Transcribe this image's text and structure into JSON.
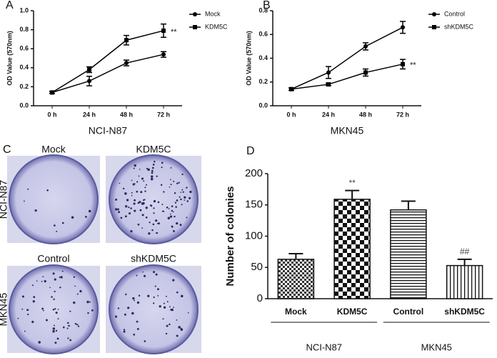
{
  "chart_data": [
    {
      "type": "line",
      "panel_label": "A",
      "x_label": "NCI-N87",
      "y_label": "OD Value (570nm)",
      "categories": [
        "0 h",
        "24 h",
        "48 h",
        "72 h"
      ],
      "series": [
        {
          "name": "Mock",
          "marker": "circle",
          "color": "#000000",
          "values": [
            0.14,
            0.26,
            0.45,
            0.54
          ],
          "errors": [
            0.01,
            0.05,
            0.03,
            0.03
          ]
        },
        {
          "name": "KDM5C",
          "marker": "square",
          "color": "#000000",
          "values": [
            0.14,
            0.38,
            0.69,
            0.79
          ],
          "errors": [
            0.01,
            0.03,
            0.05,
            0.07
          ]
        }
      ],
      "annotations": [
        "**"
      ],
      "ylim": [
        0,
        1.0
      ],
      "yticks": [
        {
          "value": 0,
          "label": "0.0"
        },
        {
          "value": 0.2,
          "label": "0.2"
        },
        {
          "value": 0.4,
          "label": "0.4"
        },
        {
          "value": 0.6,
          "label": "0.6"
        },
        {
          "value": 0.8,
          "label": "0.8"
        },
        {
          "value": 1.0,
          "label": "1.0"
        }
      ]
    },
    {
      "type": "line",
      "panel_label": "B",
      "x_label": "MKN45",
      "y_label": "OD Value (570nm)",
      "categories": [
        "0 h",
        "24 h",
        "48 h",
        "72 h"
      ],
      "series": [
        {
          "name": "Control",
          "marker": "circle",
          "color": "#000000",
          "values": [
            0.14,
            0.28,
            0.5,
            0.66
          ],
          "errors": [
            0.01,
            0.05,
            0.03,
            0.05
          ]
        },
        {
          "name": "shKDM5C",
          "marker": "square",
          "color": "#000000",
          "values": [
            0.14,
            0.18,
            0.28,
            0.35
          ],
          "errors": [
            0.01,
            0.01,
            0.03,
            0.04
          ]
        }
      ],
      "annotations": [
        "**"
      ],
      "ylim": [
        0,
        0.8
      ],
      "yticks": [
        {
          "value": 0,
          "label": "0.0"
        },
        {
          "value": 0.2,
          "label": "0.2"
        },
        {
          "value": 0.4,
          "label": "0.4"
        },
        {
          "value": 0.6,
          "label": "0.6"
        },
        {
          "value": 0.8,
          "label": "0.8"
        }
      ]
    },
    {
      "type": "bar",
      "panel_label": "D",
      "y_label": "Number of colonies",
      "categories": [
        "Mock",
        "KDM5C",
        "Control",
        "shKDM5C"
      ],
      "groups": [
        "NCI-N87",
        "MKN45"
      ],
      "values": [
        63,
        159,
        142,
        53
      ],
      "errors": [
        9,
        14,
        14,
        10
      ],
      "patterns": [
        "checker-small",
        "checker-large",
        "horizontal",
        "vertical"
      ],
      "annotations": [
        null,
        "**",
        null,
        "##"
      ],
      "ylim": [
        0,
        200
      ],
      "yticks": [
        0,
        50,
        100,
        150,
        200
      ]
    }
  ],
  "image_panel": {
    "panel_label": "C",
    "rows": [
      "NCI-N87",
      "MKN45"
    ],
    "columns": [
      [
        "Mock",
        "KDM5C"
      ],
      [
        "Control",
        "shKDM5C"
      ]
    ]
  }
}
